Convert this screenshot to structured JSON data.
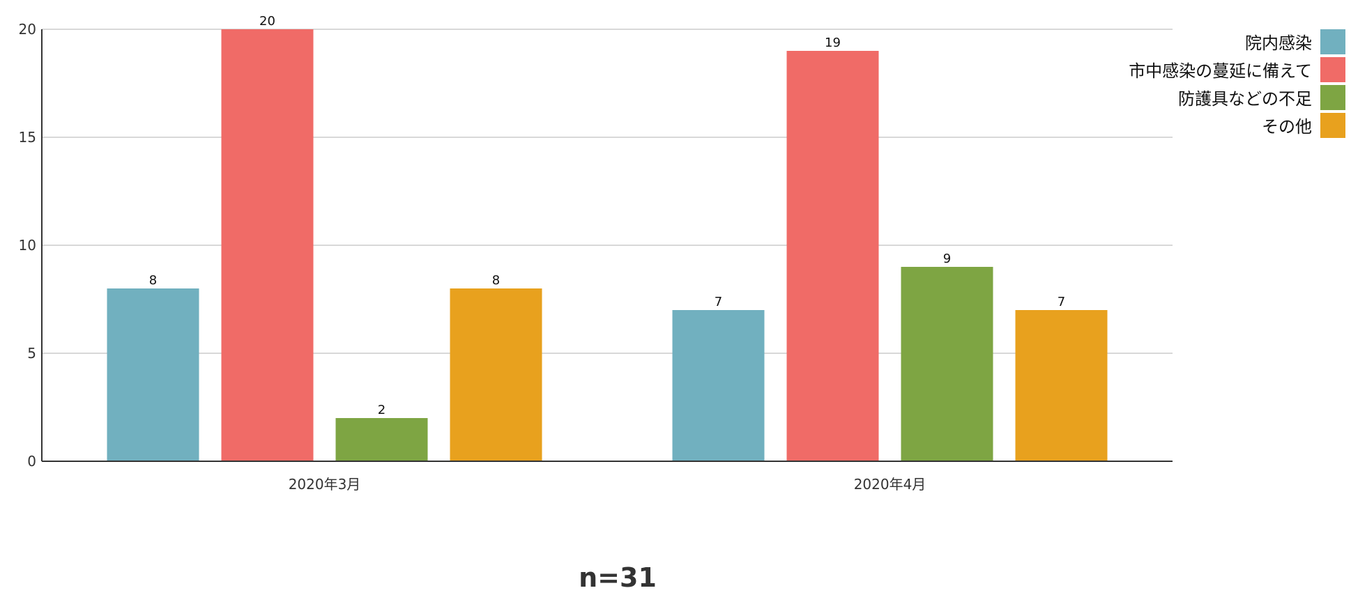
{
  "chart_data": {
    "type": "bar",
    "categories": [
      "2020年3月",
      "2020年4月"
    ],
    "series": [
      {
        "name": "院内感染",
        "values": [
          8,
          7
        ],
        "color": "#71B0BF"
      },
      {
        "name": "市中感染の蔓延に備えて",
        "values": [
          20,
          19
        ],
        "color": "#F06B67"
      },
      {
        "name": "防護具などの不足",
        "values": [
          2,
          9
        ],
        "color": "#7EA543"
      },
      {
        "name": "その他",
        "values": [
          8,
          7
        ],
        "color": "#E8A11E"
      }
    ],
    "ylim": [
      0,
      20
    ],
    "yticks": [
      0,
      5,
      10,
      15,
      20
    ],
    "grid": true,
    "legend_position": "top-right",
    "data_labels": true,
    "note": "n=31"
  }
}
